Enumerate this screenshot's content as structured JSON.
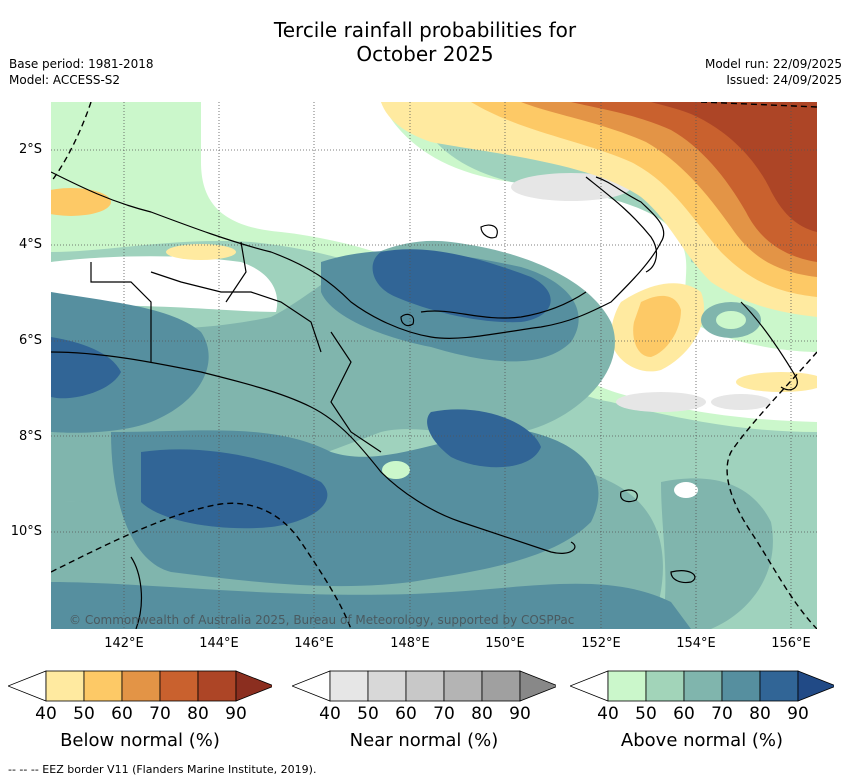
{
  "header": {
    "title_line1": "Tercile rainfall probabilities for",
    "title_line2": "October 2025",
    "base_period": "Base period: 1981-2018",
    "model": "Model: ACCESS-S2",
    "model_run": "Model run: 22/09/2025",
    "issued": "Issued: 24/09/2025"
  },
  "map": {
    "lat_labels": [
      "2°S",
      "4°S",
      "6°S",
      "8°S",
      "10°S"
    ],
    "lon_labels": [
      "142°E",
      "144°E",
      "146°E",
      "148°E",
      "150°E",
      "152°E",
      "154°E",
      "156°E"
    ],
    "copyright": "© Commonwealth of Australia 2025, Bureau of Meteorology, supported by COSPPac",
    "colors": {
      "land_outline": "#000000",
      "eez_line": "#000000"
    }
  },
  "legends": [
    {
      "name": "Below normal (%)",
      "ticks": [
        "40",
        "50",
        "60",
        "70",
        "80",
        "90"
      ],
      "colors": [
        "#ffffff",
        "#ffeaa0",
        "#fdc966",
        "#e39446",
        "#c9612e",
        "#ad4526",
        "#8b2e1f"
      ]
    },
    {
      "name": "Near normal (%)",
      "ticks": [
        "40",
        "50",
        "60",
        "70",
        "80",
        "90"
      ],
      "colors": [
        "#ffffff",
        "#e6e6e6",
        "#d8d8d8",
        "#c8c8c8",
        "#b4b4b4",
        "#a0a0a0",
        "#888888"
      ]
    },
    {
      "name": "Above normal (%)",
      "ticks": [
        "40",
        "50",
        "60",
        "70",
        "80",
        "90"
      ],
      "colors": [
        "#ffffff",
        "#cbf7cb",
        "#a2d4b9",
        "#80b5ad",
        "#568f9f",
        "#316596",
        "#214a86"
      ]
    }
  ],
  "footer": "--  --  -- EEZ border V11 (Flanders Marine Institute, 2019)."
}
